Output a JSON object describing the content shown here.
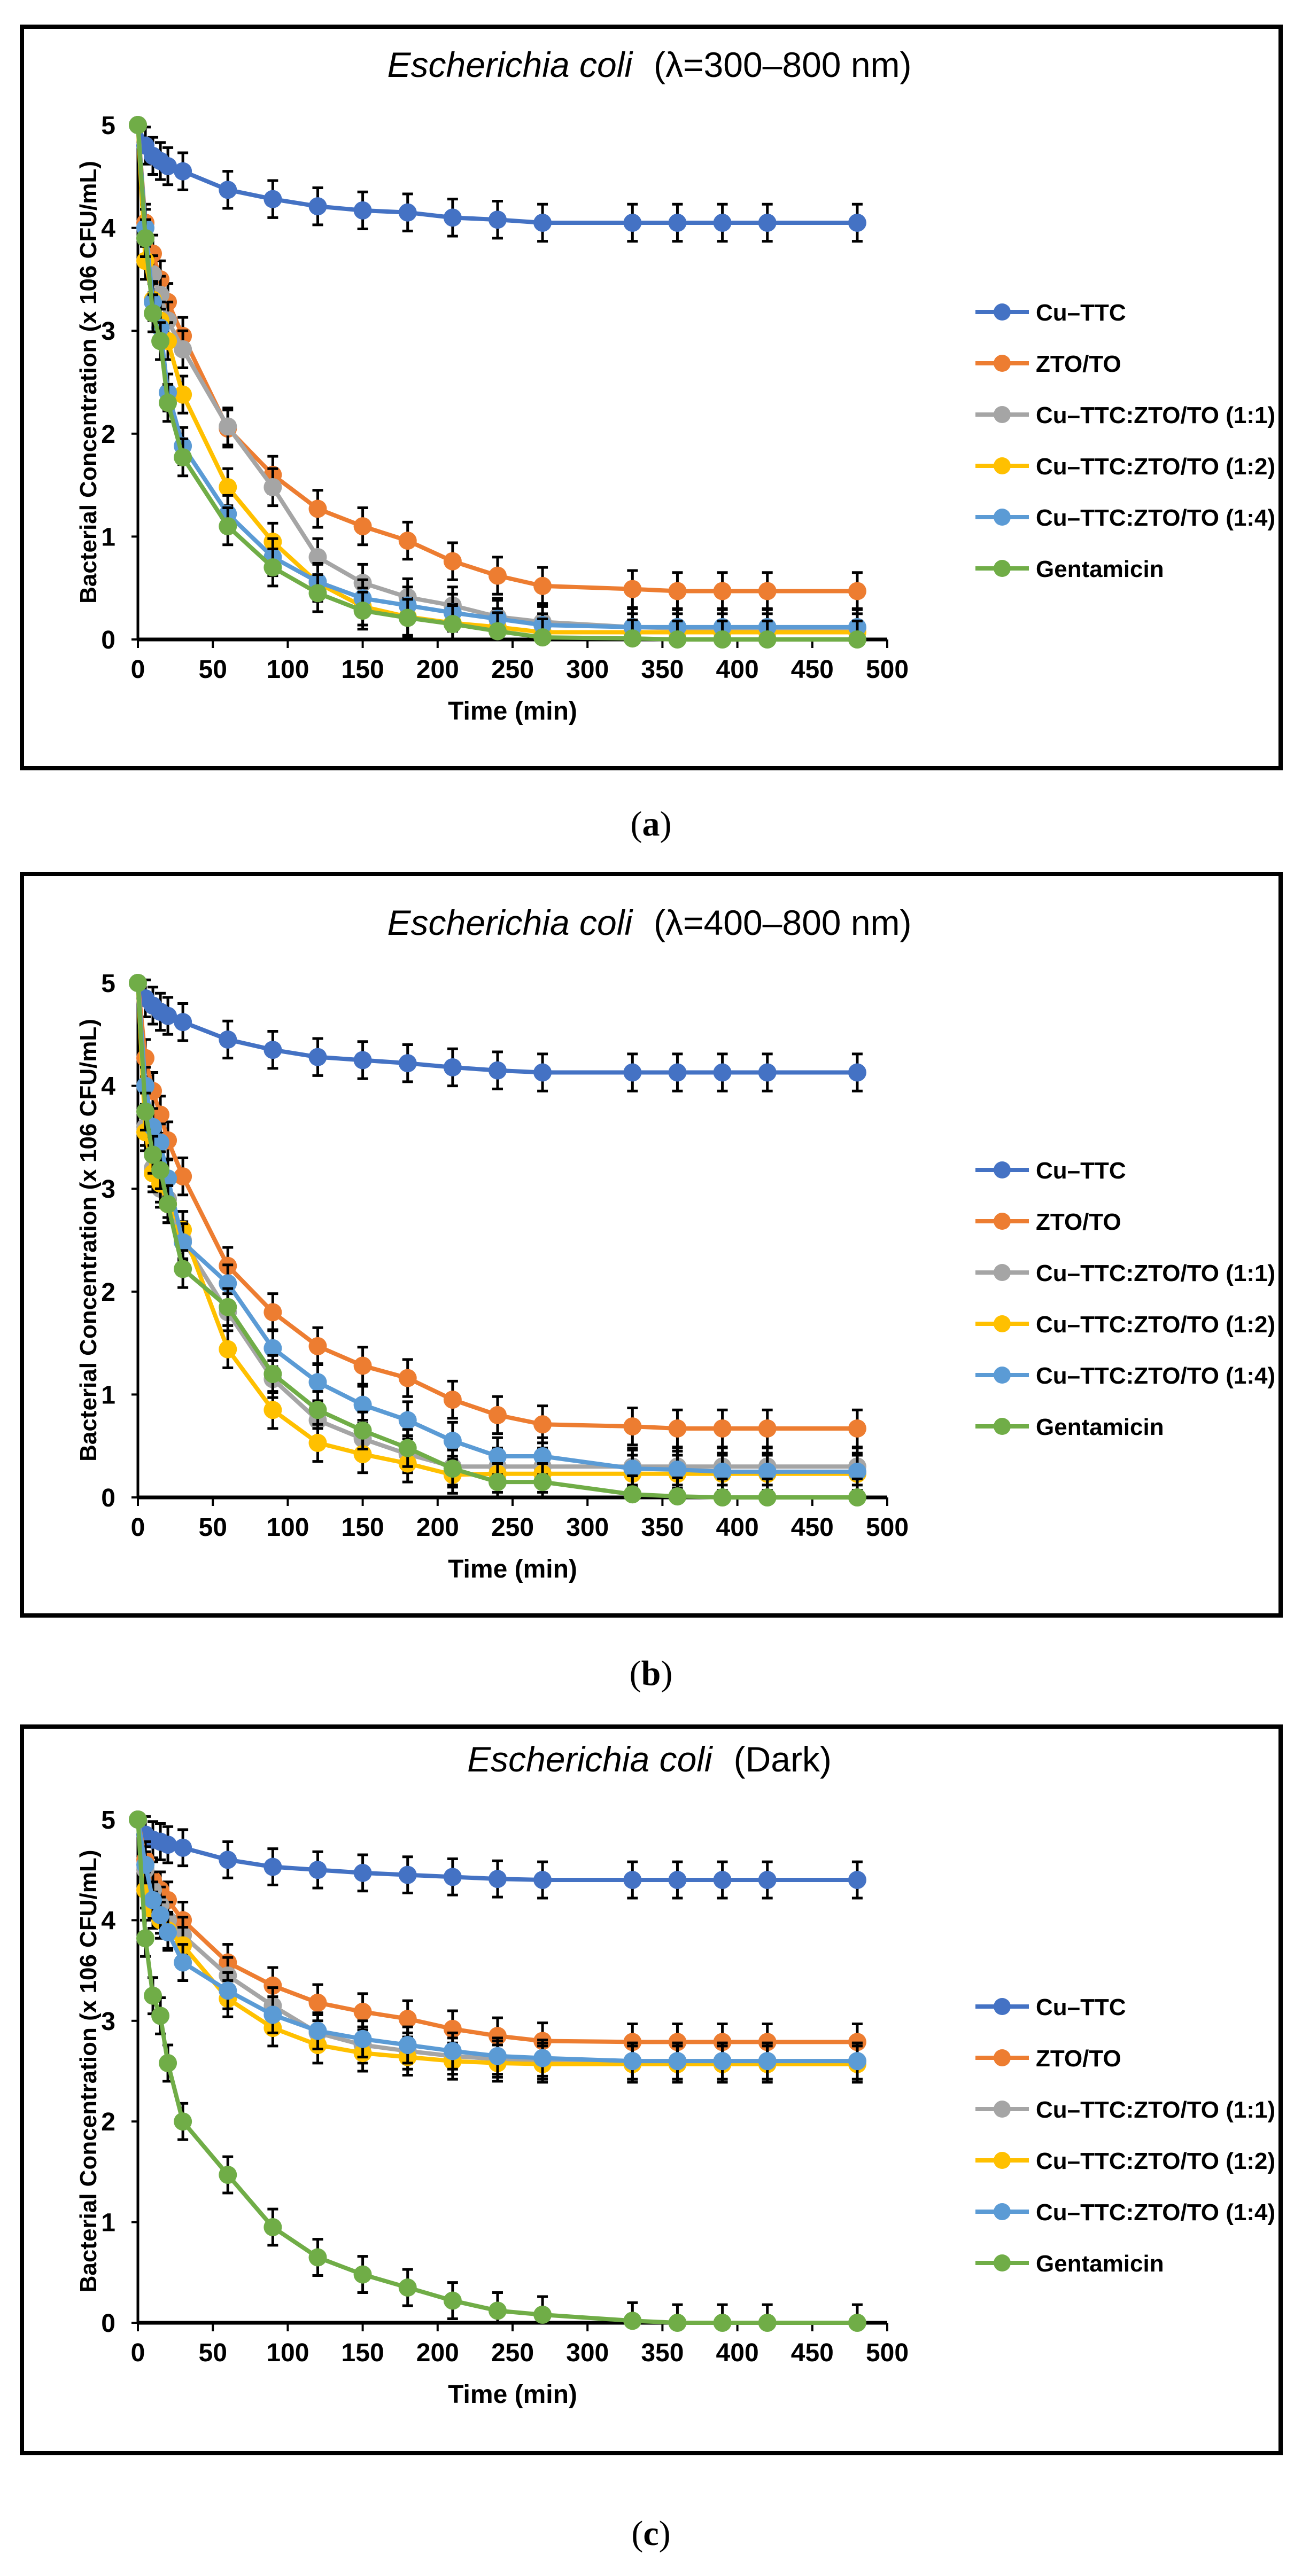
{
  "chart_data": [
    {
      "type": "line",
      "panel_label": "a",
      "title": "Escherichia coli",
      "title_suffix": "(λ=300–800 nm)",
      "xlabel": "Time (min)",
      "ylabel": "Bacterial Concentration (x 106 CFU/mL)",
      "xlim": [
        0,
        500
      ],
      "ylim": [
        0,
        5
      ],
      "xticks": [
        0,
        50,
        100,
        150,
        200,
        250,
        300,
        350,
        400,
        450,
        500
      ],
      "yticks": [
        0,
        1,
        2,
        3,
        4,
        5
      ],
      "legend_position": "right",
      "x": [
        0,
        5,
        10,
        15,
        20,
        30,
        60,
        90,
        120,
        150,
        180,
        210,
        240,
        270,
        330,
        360,
        390,
        420,
        480
      ],
      "series": [
        {
          "name": "Cu–TTC",
          "color": "#4472C4",
          "error": 0.18,
          "values": [
            5,
            4.8,
            4.7,
            4.65,
            4.6,
            4.55,
            4.37,
            4.28,
            4.21,
            4.17,
            4.15,
            4.1,
            4.08,
            4.05,
            4.05,
            4.05,
            4.05,
            4.05,
            4.05
          ]
        },
        {
          "name": "ZTO/TO",
          "color": "#ED7D31",
          "error": 0.18,
          "values": [
            5,
            4.05,
            3.75,
            3.5,
            3.28,
            2.95,
            2.05,
            1.6,
            1.27,
            1.1,
            0.96,
            0.76,
            0.62,
            0.52,
            0.49,
            0.47,
            0.47,
            0.47,
            0.47
          ]
        },
        {
          "name": "Cu–TTC:ZTO/TO (1:1)",
          "color": "#A5A5A5",
          "error": 0.18,
          "values": [
            5,
            3.9,
            3.55,
            3.35,
            3.1,
            2.82,
            2.07,
            1.48,
            0.8,
            0.55,
            0.41,
            0.33,
            0.22,
            0.17,
            0.12,
            0.11,
            0.11,
            0.11,
            0.11
          ]
        },
        {
          "name": "Cu–TTC:ZTO/TO (1:2)",
          "color": "#FFC000",
          "error": 0.18,
          "values": [
            5,
            3.68,
            3.3,
            3.1,
            2.9,
            2.38,
            1.48,
            0.95,
            0.55,
            0.32,
            0.22,
            0.16,
            0.12,
            0.07,
            0.07,
            0.07,
            0.07,
            0.07,
            0.07
          ]
        },
        {
          "name": "Cu–TTC:ZTO/TO (1:4)",
          "color": "#5B9BD5",
          "error": 0.18,
          "values": [
            5,
            4.0,
            3.28,
            3.03,
            2.4,
            1.88,
            1.22,
            0.8,
            0.56,
            0.4,
            0.33,
            0.26,
            0.2,
            0.14,
            0.12,
            0.12,
            0.12,
            0.12,
            0.12
          ]
        },
        {
          "name": "Gentamicin",
          "color": "#70AD47",
          "error": 0.18,
          "values": [
            5,
            3.9,
            3.17,
            2.9,
            2.3,
            1.77,
            1.1,
            0.7,
            0.45,
            0.28,
            0.21,
            0.15,
            0.08,
            0.02,
            0.01,
            0,
            0,
            0,
            0
          ]
        }
      ]
    },
    {
      "type": "line",
      "panel_label": "b",
      "title": "Escherichia coli",
      "title_suffix": "(λ=400–800 nm)",
      "xlabel": "Time (min)",
      "ylabel": "Bacterial Concentration (x 106 CFU/mL)",
      "xlim": [
        0,
        500
      ],
      "ylim": [
        0,
        5
      ],
      "xticks": [
        0,
        50,
        100,
        150,
        200,
        250,
        300,
        350,
        400,
        450,
        500
      ],
      "yticks": [
        0,
        1,
        2,
        3,
        4,
        5
      ],
      "legend_position": "right",
      "x": [
        0,
        5,
        10,
        15,
        20,
        30,
        60,
        90,
        120,
        150,
        180,
        210,
        240,
        270,
        330,
        360,
        390,
        420,
        480
      ],
      "series": [
        {
          "name": "Cu–TTC",
          "color": "#4472C4",
          "error": 0.18,
          "values": [
            5,
            4.85,
            4.78,
            4.72,
            4.68,
            4.62,
            4.45,
            4.35,
            4.28,
            4.25,
            4.22,
            4.18,
            4.15,
            4.13,
            4.13,
            4.13,
            4.13,
            4.13,
            4.13
          ]
        },
        {
          "name": "ZTO/TO",
          "color": "#ED7D31",
          "error": 0.18,
          "values": [
            5,
            4.27,
            3.95,
            3.72,
            3.47,
            3.12,
            2.25,
            1.8,
            1.47,
            1.28,
            1.16,
            0.95,
            0.8,
            0.71,
            0.69,
            0.67,
            0.67,
            0.67,
            0.67
          ]
        },
        {
          "name": "Cu–TTC:ZTO/TO (1:1)",
          "color": "#A5A5A5",
          "error": 0.18,
          "values": [
            5,
            3.6,
            3.2,
            3.0,
            2.9,
            2.5,
            1.8,
            1.15,
            0.75,
            0.57,
            0.42,
            0.3,
            0.3,
            0.3,
            0.3,
            0.3,
            0.3,
            0.3,
            0.3
          ]
        },
        {
          "name": "Cu–TTC:ZTO/TO (1:2)",
          "color": "#FFC000",
          "error": 0.18,
          "values": [
            5,
            3.55,
            3.15,
            3.05,
            2.85,
            2.6,
            1.44,
            0.85,
            0.53,
            0.42,
            0.33,
            0.22,
            0.23,
            0.23,
            0.23,
            0.23,
            0.23,
            0.23,
            0.23
          ]
        },
        {
          "name": "Cu–TTC:ZTO/TO (1:4)",
          "color": "#5B9BD5",
          "error": 0.18,
          "values": [
            5,
            4.0,
            3.6,
            3.45,
            3.1,
            2.48,
            2.08,
            1.45,
            1.12,
            0.9,
            0.75,
            0.55,
            0.4,
            0.4,
            0.28,
            0.27,
            0.25,
            0.25,
            0.25
          ]
        },
        {
          "name": "Gentamicin",
          "color": "#70AD47",
          "error": 0.18,
          "values": [
            5,
            3.75,
            3.33,
            3.18,
            2.85,
            2.22,
            1.85,
            1.2,
            0.85,
            0.65,
            0.48,
            0.28,
            0.15,
            0.15,
            0.03,
            0.01,
            0,
            0,
            0
          ]
        }
      ]
    },
    {
      "type": "line",
      "panel_label": "c",
      "title": "Escherichia coli",
      "title_suffix": "(Dark)",
      "xlabel": "Time (min)",
      "ylabel": "Bacterial Concentration (x 106 CFU/mL)",
      "xlim": [
        0,
        500
      ],
      "ylim": [
        0,
        5
      ],
      "xticks": [
        0,
        50,
        100,
        150,
        200,
        250,
        300,
        350,
        400,
        450,
        500
      ],
      "yticks": [
        0,
        1,
        2,
        3,
        4,
        5
      ],
      "legend_position": "right",
      "x": [
        0,
        5,
        10,
        15,
        20,
        30,
        60,
        90,
        120,
        150,
        180,
        210,
        240,
        270,
        330,
        360,
        390,
        420,
        480
      ],
      "series": [
        {
          "name": "Cu–TTC",
          "color": "#4472C4",
          "error": 0.18,
          "values": [
            5,
            4.85,
            4.8,
            4.78,
            4.75,
            4.72,
            4.6,
            4.53,
            4.5,
            4.47,
            4.45,
            4.43,
            4.41,
            4.4,
            4.4,
            4.4,
            4.4,
            4.4,
            4.4
          ]
        },
        {
          "name": "ZTO/TO",
          "color": "#ED7D31",
          "error": 0.18,
          "values": [
            5,
            4.6,
            4.4,
            4.3,
            4.2,
            4.0,
            3.58,
            3.35,
            3.18,
            3.09,
            3.02,
            2.92,
            2.85,
            2.8,
            2.79,
            2.79,
            2.79,
            2.79,
            2.79
          ]
        },
        {
          "name": "Cu–TTC:ZTO/TO (1:1)",
          "color": "#A5A5A5",
          "error": 0.18,
          "values": [
            5,
            4.5,
            4.3,
            4.15,
            4.0,
            3.85,
            3.45,
            3.15,
            2.88,
            2.76,
            2.7,
            2.65,
            2.62,
            2.6,
            2.6,
            2.6,
            2.6,
            2.6,
            2.6
          ]
        },
        {
          "name": "Cu–TTC:ZTO/TO (1:2)",
          "color": "#FFC000",
          "error": 0.18,
          "values": [
            5,
            4.3,
            4.1,
            4.0,
            3.9,
            3.75,
            3.22,
            2.93,
            2.76,
            2.68,
            2.64,
            2.6,
            2.58,
            2.57,
            2.57,
            2.57,
            2.57,
            2.57,
            2.57
          ]
        },
        {
          "name": "Cu–TTC:ZTO/TO (1:4)",
          "color": "#5B9BD5",
          "error": 0.18,
          "values": [
            5,
            4.55,
            4.2,
            4.05,
            3.88,
            3.58,
            3.3,
            3.06,
            2.9,
            2.82,
            2.76,
            2.7,
            2.65,
            2.63,
            2.6,
            2.6,
            2.6,
            2.6,
            2.6
          ]
        },
        {
          "name": "Gentamicin",
          "color": "#70AD47",
          "error": 0.18,
          "values": [
            5,
            3.82,
            3.25,
            3.05,
            2.58,
            2.0,
            1.47,
            0.95,
            0.65,
            0.48,
            0.35,
            0.22,
            0.12,
            0.08,
            0.02,
            0,
            0,
            0,
            0
          ]
        }
      ]
    }
  ]
}
